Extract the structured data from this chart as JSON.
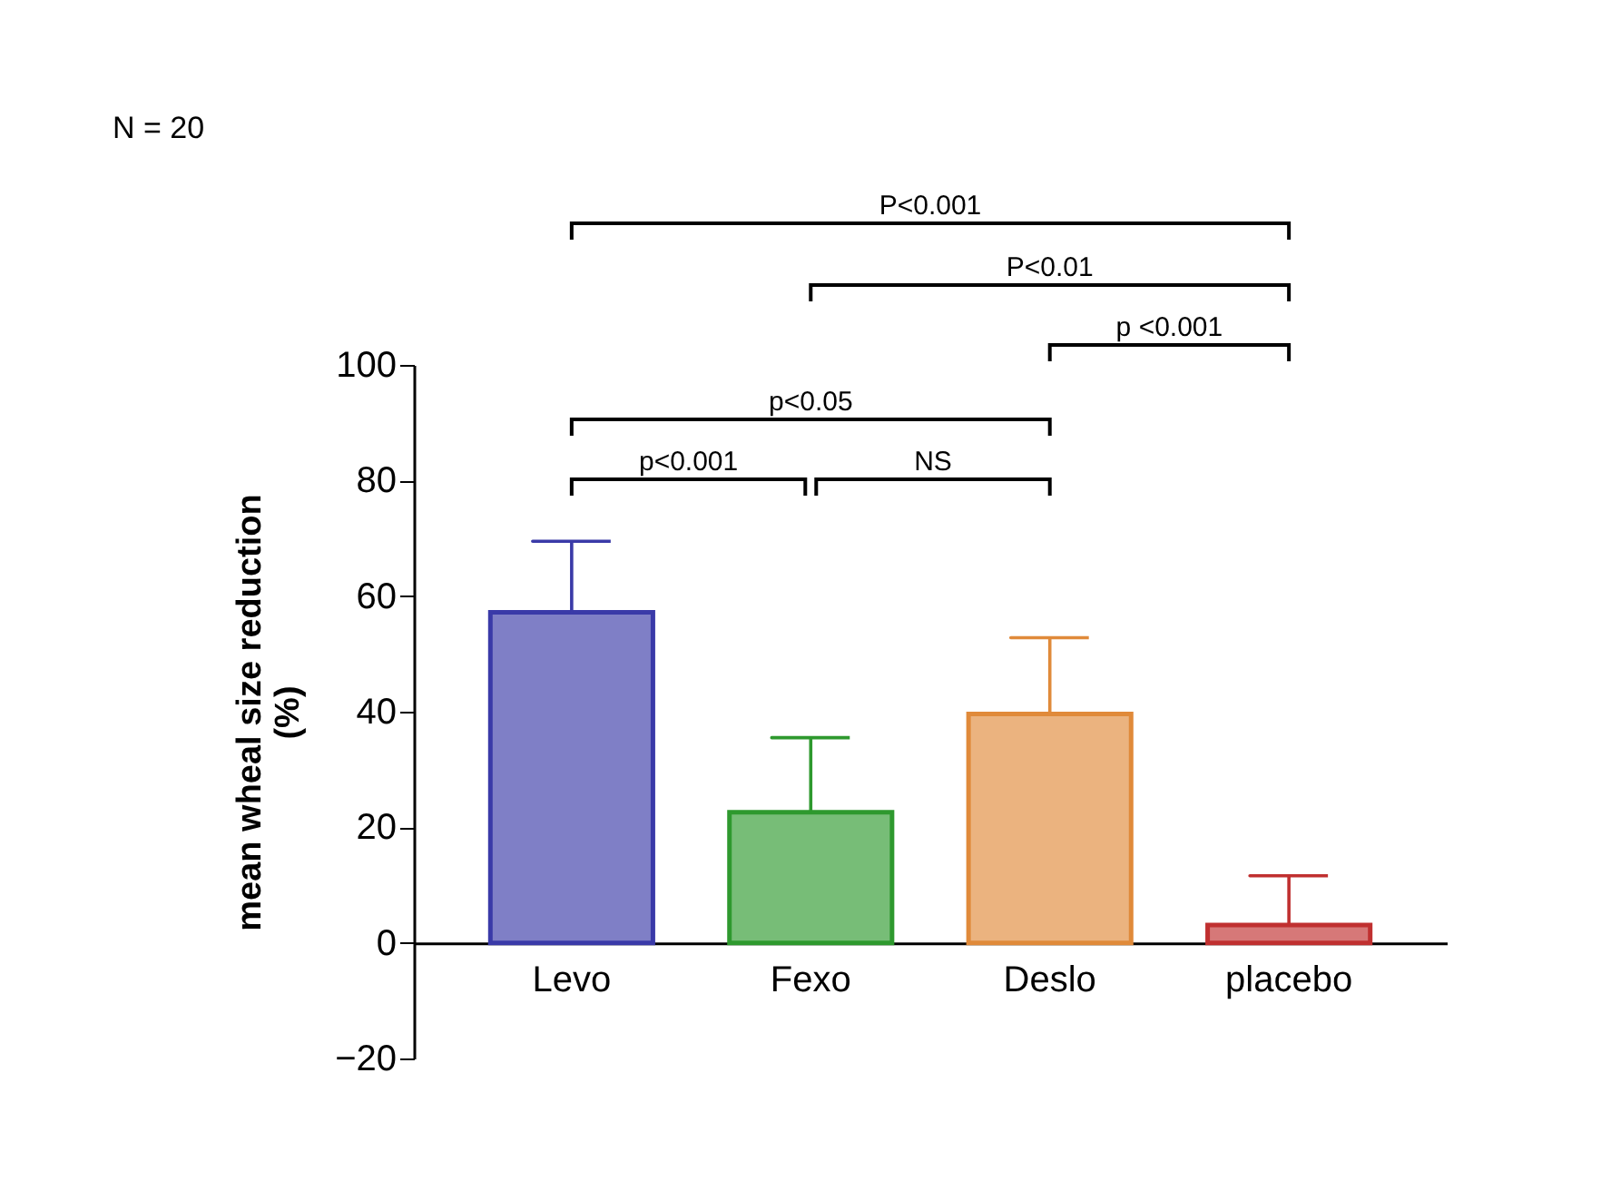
{
  "chart_data": {
    "type": "bar",
    "ylabel": "mean wheal size reduction\n(%)",
    "categories": [
      "Levo",
      "Fexo",
      "Deslo",
      "placebo"
    ],
    "values": [
      57.2,
      22.6,
      39.6,
      3.1
    ],
    "errors": [
      [
        57.2,
        69.5
      ],
      [
        22.6,
        35.5
      ],
      [
        39.6,
        52.8
      ],
      [
        3.1,
        11.6
      ]
    ],
    "colors": [
      "#3a3aa8",
      "#2e992e",
      "#e08a3a",
      "#c03030"
    ],
    "ylim": [
      -20,
      100
    ],
    "yticks": [
      -20,
      0,
      20,
      40,
      60,
      80,
      100
    ],
    "grid": false,
    "annotations": [
      "N = 20",
      "P<0.001",
      "P<0.01",
      "p <0.001",
      "p<0.05",
      "p<0.001",
      "NS"
    ]
  }
}
